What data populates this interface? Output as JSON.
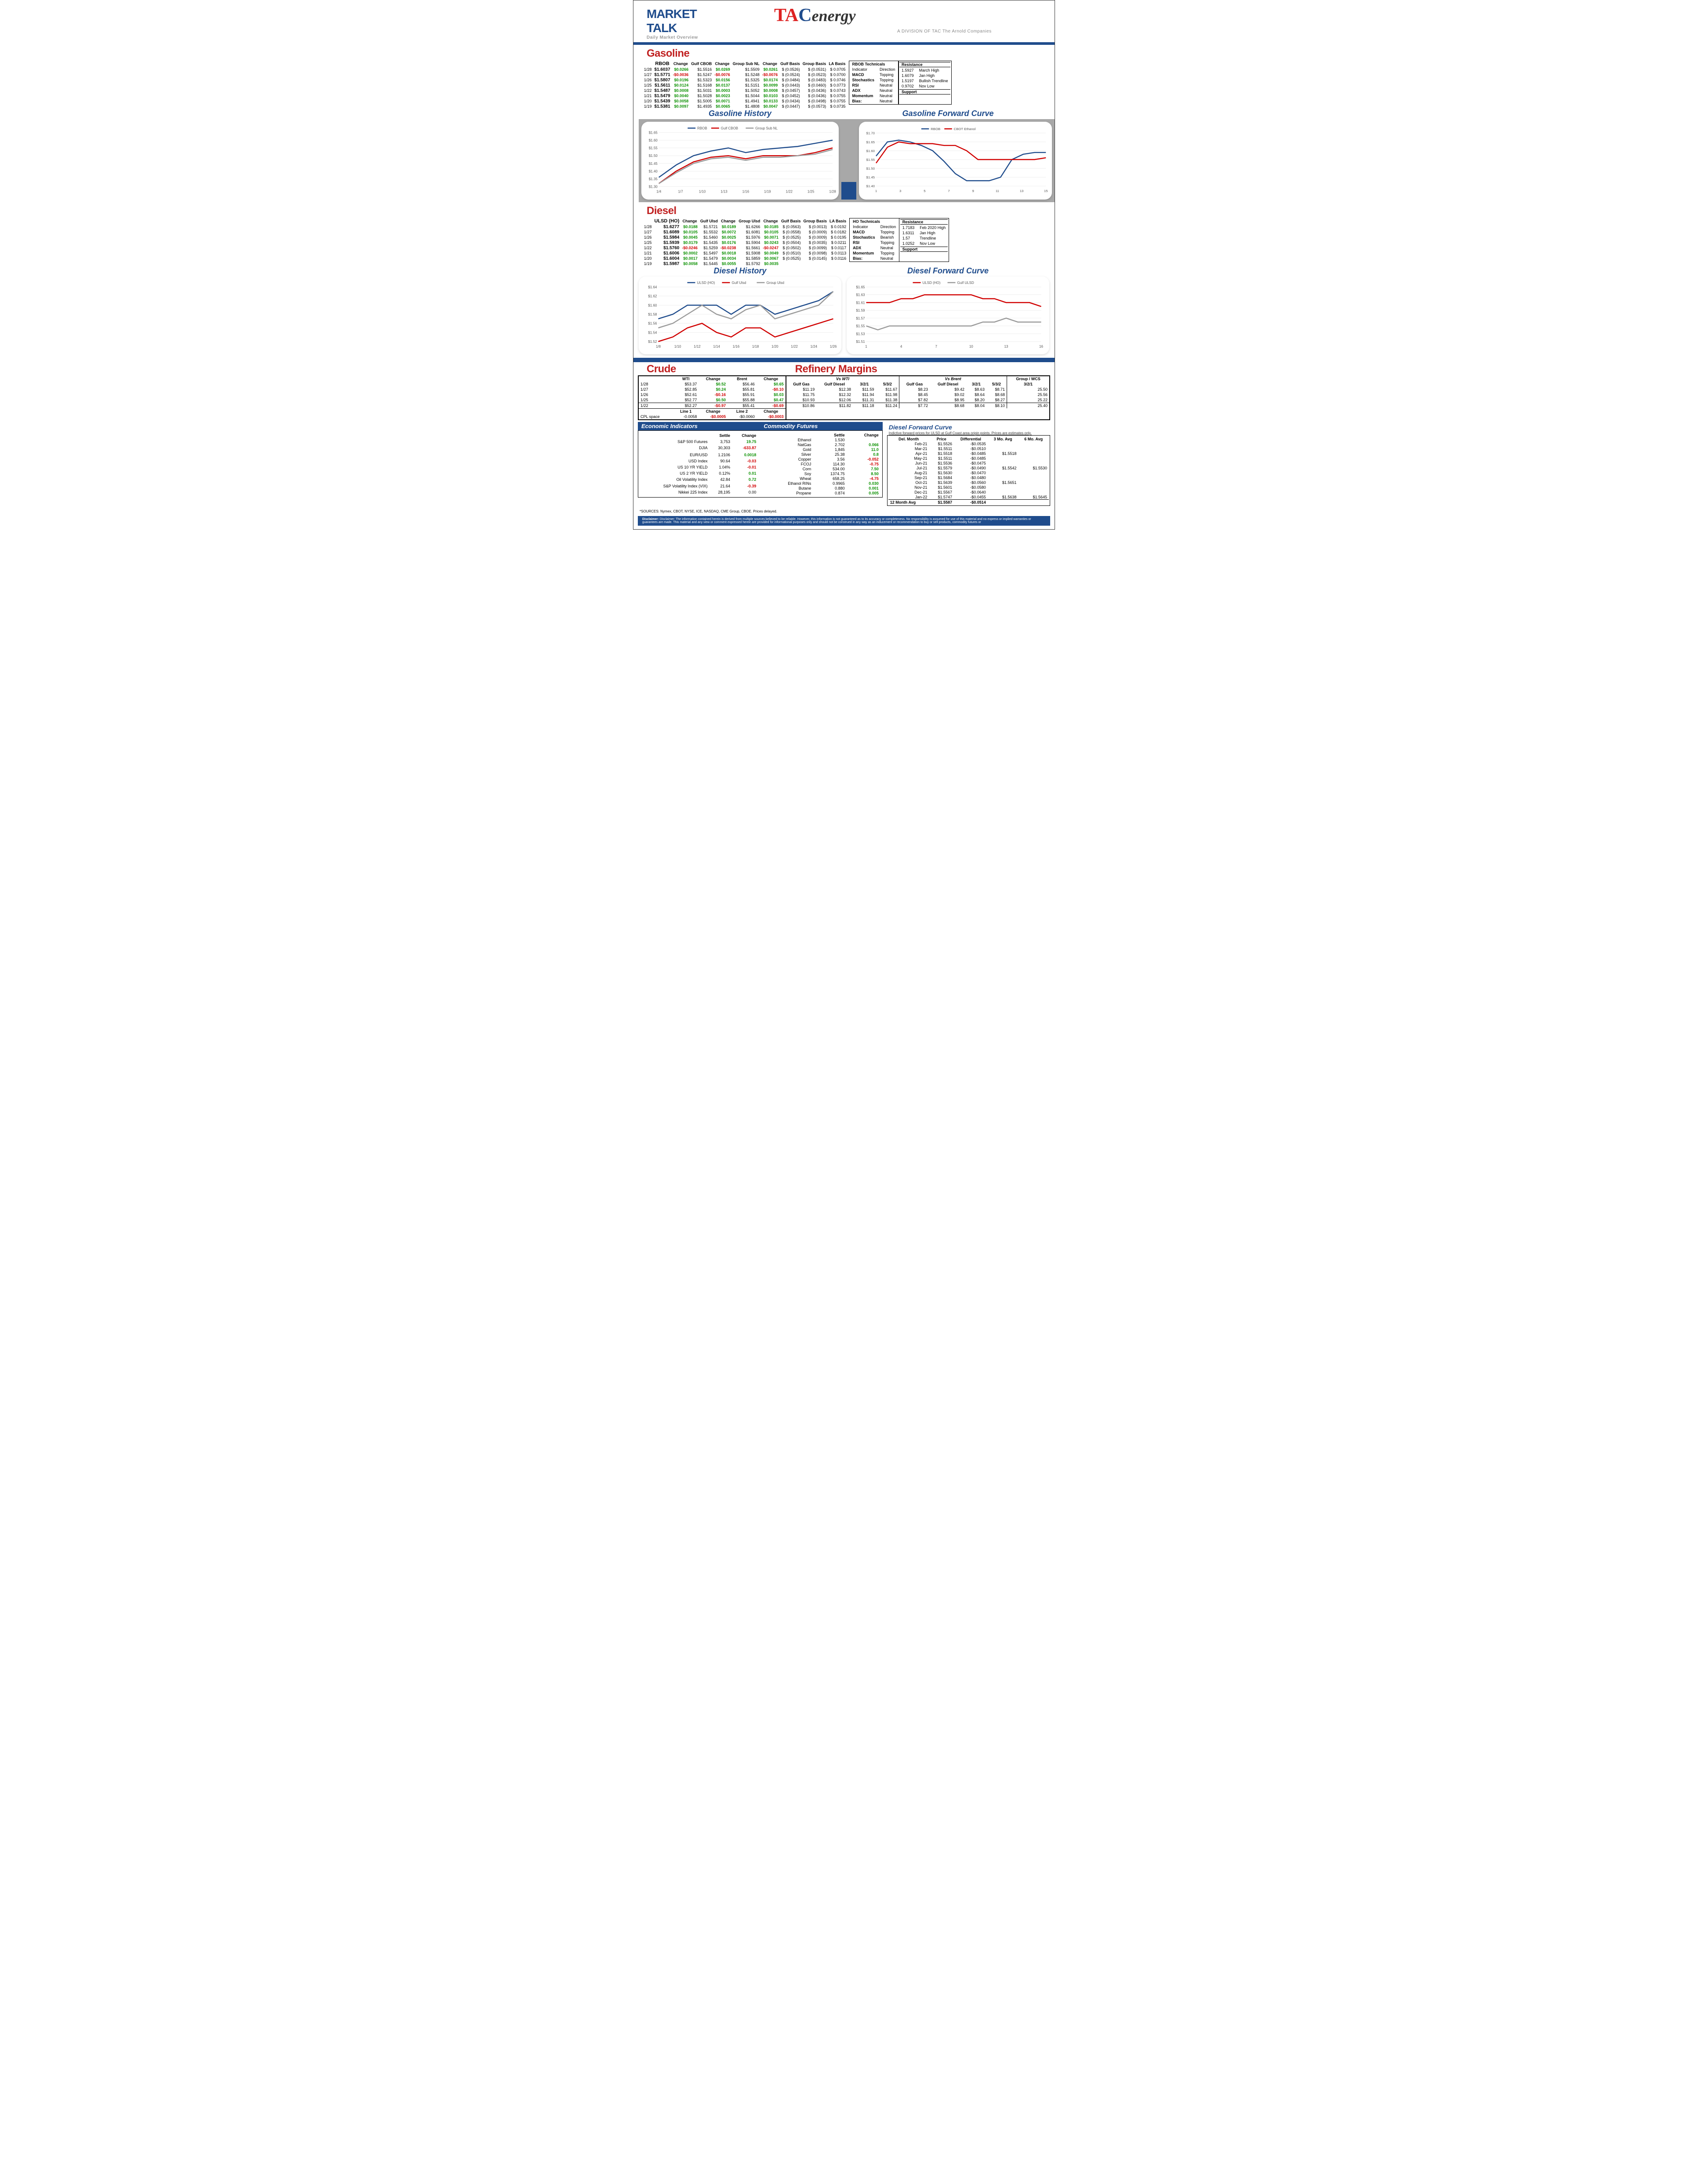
{
  "header": {
    "market": "MARKET",
    "talk": "TALK",
    "sub": "Daily Market Overview",
    "tac": "TACenergy",
    "tac_sub": "A DIVISION OF TAC The Arnold Companies"
  },
  "gasoline": {
    "title": "Gasoline",
    "cols": [
      "",
      "RBOB",
      "Change",
      "Gulf CBOB",
      "Change",
      "Group Sub NL",
      "Change",
      "Gulf Basis",
      "Group Basis",
      "LA Basis"
    ],
    "rows": [
      [
        "1/28",
        "$1.6037",
        "$0.0266",
        "$1.5516",
        "$0.0269",
        "$1.5509",
        "$0.0261",
        "$ (0.0526)",
        "$ (0.0531)",
        "$ 0.0705"
      ],
      [
        "1/27",
        "$1.5771",
        "-$0.0036",
        "$1.5247",
        "-$0.0076",
        "$1.5248",
        "-$0.0076",
        "$ (0.0524)",
        "$ (0.0523)",
        "$ 0.0700"
      ],
      [
        "1/26",
        "$1.5807",
        "$0.0196",
        "$1.5323",
        "$0.0156",
        "$1.5325",
        "$0.0174",
        "$ (0.0484)",
        "$ (0.0483)",
        "$ 0.0746"
      ],
      [
        "1/25",
        "$1.5611",
        "$0.0124",
        "$1.5168",
        "$0.0137",
        "$1.5151",
        "$0.0099",
        "$ (0.0443)",
        "$ (0.0460)",
        "$ 0.0773"
      ],
      [
        "1/22",
        "$1.5487",
        "$0.0008",
        "$1.5031",
        "$0.0003",
        "$1.5052",
        "$0.0008",
        "$ (0.0457)",
        "$ (0.0436)",
        "$ 0.0743"
      ],
      [
        "1/21",
        "$1.5479",
        "$0.0040",
        "$1.5028",
        "$0.0023",
        "$1.5044",
        "$0.0103",
        "$ (0.0452)",
        "$ (0.0436)",
        "$ 0.0755"
      ],
      [
        "1/20",
        "$1.5439",
        "$0.0058",
        "$1.5005",
        "$0.0071",
        "$1.4941",
        "$0.0133",
        "$ (0.0434)",
        "$ (0.0498)",
        "$ 0.0755"
      ],
      [
        "1/19",
        "$1.5381",
        "$0.0097",
        "$1.4935",
        "$0.0065",
        "$1.4808",
        "$0.0047",
        "$ (0.0447)",
        "$ (0.0573)",
        "$ 0.0735"
      ]
    ],
    "neg_rows": [
      1
    ],
    "technicals": {
      "header": "RBOB Technicals",
      "cols": [
        "Indicator",
        "Direction"
      ],
      "rows": [
        [
          "MACD",
          "Topping"
        ],
        [
          "Stochastics",
          "Topping"
        ],
        [
          "RSI",
          "Neutral"
        ],
        [
          "ADX",
          "Neutral"
        ],
        [
          "Momentum",
          "Neutral"
        ],
        [
          "Bias:",
          "Neutral"
        ]
      ]
    },
    "resistance": {
      "title": "Resistance",
      "rows": [
        [
          "1.5927",
          "March High"
        ],
        [
          "1.6079",
          "Jan High"
        ],
        [
          "1.5197",
          "Bullish Trendline"
        ],
        [
          "0.9702",
          "Nov Low"
        ]
      ],
      "support": "Support"
    }
  },
  "gas_history": {
    "title": "Gasoline History",
    "legend": [
      "RBOB",
      "Gulf CBOB",
      "Group Sub NL"
    ],
    "colors": [
      "#1f4c8c",
      "#d00000",
      "#9b9b9b"
    ],
    "x": [
      "1/4",
      "1/7",
      "1/10",
      "1/13",
      "1/16",
      "1/19",
      "1/22",
      "1/25",
      "1/28"
    ],
    "ylim": [
      1.3,
      1.65
    ],
    "ytick": 0.05,
    "series": [
      [
        1.36,
        1.44,
        1.5,
        1.53,
        1.55,
        1.52,
        1.54,
        1.55,
        1.56,
        1.58,
        1.6
      ],
      [
        1.32,
        1.4,
        1.46,
        1.49,
        1.5,
        1.48,
        1.5,
        1.5,
        1.5,
        1.52,
        1.55
      ],
      [
        1.32,
        1.39,
        1.45,
        1.48,
        1.49,
        1.47,
        1.49,
        1.49,
        1.5,
        1.51,
        1.54
      ]
    ]
  },
  "gas_fwd": {
    "title": "Gasoline Forward Curve",
    "legend": [
      "RBOB",
      "CBOT Ethanol"
    ],
    "colors": [
      "#1f4c8c",
      "#d00000"
    ],
    "x": [
      "1",
      "3",
      "5",
      "7",
      "9",
      "11",
      "13",
      "15"
    ],
    "ylim": [
      1.4,
      1.7
    ],
    "ytick": 0.05,
    "series": [
      [
        1.57,
        1.65,
        1.66,
        1.65,
        1.63,
        1.6,
        1.54,
        1.47,
        1.43,
        1.43,
        1.43,
        1.45,
        1.55,
        1.58,
        1.59,
        1.59
      ],
      [
        1.53,
        1.62,
        1.65,
        1.64,
        1.64,
        1.64,
        1.63,
        1.63,
        1.6,
        1.55,
        1.55,
        1.55,
        1.55,
        1.55,
        1.55,
        1.56
      ]
    ]
  },
  "diesel": {
    "title": "Diesel",
    "cols": [
      "",
      "ULSD (HO)",
      "Change",
      "Gulf Ulsd",
      "Change",
      "Group Ulsd",
      "Change",
      "Gulf Basis",
      "Group Basis",
      "LA Basis"
    ],
    "rows": [
      [
        "1/28",
        "$1.6277",
        "$0.0188",
        "$1.5721",
        "$0.0189",
        "$1.6266",
        "$0.0185",
        "$ (0.0563)",
        "$ (0.0013)",
        "$ 0.0192"
      ],
      [
        "1/27",
        "$1.6089",
        "$0.0105",
        "$1.5532",
        "$0.0072",
        "$1.6081",
        "$0.0105",
        "$ (0.0558)",
        "$ (0.0009)",
        "$ 0.0182"
      ],
      [
        "1/26",
        "$1.5984",
        "$0.0045",
        "$1.5460",
        "$0.0025",
        "$1.5976",
        "$0.0071",
        "$ (0.0525)",
        "$ (0.0009)",
        "$ 0.0195"
      ],
      [
        "1/25",
        "$1.5939",
        "$0.0179",
        "$1.5435",
        "$0.0176",
        "$1.5904",
        "$0.0243",
        "$ (0.0504)",
        "$ (0.0035)",
        "$ 0.0211"
      ],
      [
        "1/22",
        "$1.5760",
        "-$0.0246",
        "$1.5259",
        "-$0.0238",
        "$1.5661",
        "-$0.0247",
        "$ (0.0502)",
        "$ (0.0099)",
        "$ 0.0117"
      ],
      [
        "1/21",
        "$1.6006",
        "$0.0002",
        "$1.5497",
        "$0.0018",
        "$1.5908",
        "$0.0049",
        "$ (0.0510)",
        "$ (0.0098)",
        "$ 0.0113"
      ],
      [
        "1/20",
        "$1.6004",
        "$0.0017",
        "$1.5479",
        "$0.0034",
        "$1.5859",
        "$0.0067",
        "$ (0.0525)",
        "$ (0.0145)",
        "$ 0.0116"
      ],
      [
        "1/19",
        "$1.5987",
        "$0.0058",
        "$1.5445",
        "$0.0055",
        "$1.5792",
        "$0.0035",
        "",
        "",
        ""
      ]
    ],
    "neg_rows": [
      4
    ],
    "technicals": {
      "header": "HO Technicals",
      "cols": [
        "Indicator",
        "Direction"
      ],
      "rows": [
        [
          "MACD",
          "Topping"
        ],
        [
          "Stochastics",
          "Bearish"
        ],
        [
          "RSI",
          "Topping"
        ],
        [
          "ADX",
          "Neutral"
        ],
        [
          "Momentum",
          "Topping"
        ],
        [
          "Bias:",
          "Neutral"
        ]
      ]
    },
    "resistance": {
      "title": "Resistance",
      "rows": [
        [
          "1.7183",
          "Feb 2020 High"
        ],
        [
          "1.6311",
          "Jan High"
        ],
        [
          "1.57",
          "Trendline"
        ],
        [
          "1.0252",
          "Nov Low"
        ]
      ],
      "support": "Support"
    }
  },
  "diesel_history": {
    "title": "Diesel History",
    "legend": [
      "ULSD (HO)",
      "Gulf Ulsd",
      "Group Ulsd"
    ],
    "colors": [
      "#1f4c8c",
      "#d00000",
      "#9b9b9b"
    ],
    "x": [
      "1/8",
      "1/10",
      "1/12",
      "1/14",
      "1/16",
      "1/18",
      "1/20",
      "1/22",
      "1/24",
      "1/26"
    ],
    "ylim": [
      1.52,
      1.64
    ],
    "ytick": 0.02,
    "series": [
      [
        1.57,
        1.58,
        1.6,
        1.6,
        1.6,
        1.58,
        1.6,
        1.6,
        1.58,
        1.59,
        1.6,
        1.61,
        1.63
      ],
      [
        1.52,
        1.53,
        1.55,
        1.56,
        1.54,
        1.53,
        1.55,
        1.55,
        1.53,
        1.54,
        1.55,
        1.56,
        1.57
      ],
      [
        1.55,
        1.56,
        1.58,
        1.6,
        1.58,
        1.57,
        1.59,
        1.6,
        1.57,
        1.58,
        1.59,
        1.6,
        1.63
      ]
    ]
  },
  "diesel_fwd": {
    "title": "Diesel Forward Curve",
    "legend": [
      "ULSD (HO)",
      "Gulf ULSD"
    ],
    "colors": [
      "#d00000",
      "#9b9b9b"
    ],
    "x": [
      "1",
      "4",
      "7",
      "10",
      "13",
      "16"
    ],
    "ylim": [
      1.51,
      1.65
    ],
    "ytick": 0.02,
    "series": [
      [
        1.61,
        1.61,
        1.61,
        1.62,
        1.62,
        1.63,
        1.63,
        1.63,
        1.63,
        1.63,
        1.62,
        1.62,
        1.61,
        1.61,
        1.61,
        1.6
      ],
      [
        1.55,
        1.54,
        1.55,
        1.55,
        1.55,
        1.55,
        1.55,
        1.55,
        1.55,
        1.55,
        1.56,
        1.56,
        1.57,
        1.56,
        1.56,
        1.56
      ]
    ]
  },
  "crude": {
    "title": "Crude",
    "cols": [
      "",
      "WTI",
      "Change",
      "Brent",
      "Change"
    ],
    "rows": [
      [
        "1/28",
        "$53.37",
        "$0.52",
        "$56.46",
        "$0.65"
      ],
      [
        "1/27",
        "$52.85",
        "$0.24",
        "$55.81",
        "-$0.10"
      ],
      [
        "1/26",
        "$52.61",
        "-$0.16",
        "$55.91",
        "$0.03"
      ],
      [
        "1/25",
        "$52.77",
        "$0.50",
        "$55.88",
        "$0.47"
      ],
      [
        "1/22",
        "$52.27",
        "-$0.97",
        "$55.41",
        "-$0.69"
      ]
    ],
    "cpl": {
      "label": "CPL space",
      "l1": "Line 1",
      "c1": "Change",
      "l2": "Line 2",
      "c2": "Change",
      "v": [
        "-0.0058",
        "-$0.0005",
        "-$0.0060",
        "-$0.0003"
      ]
    }
  },
  "refinery": {
    "title": "Refinery Margins",
    "hdr1": [
      "Vs WTI",
      "Vs Brent",
      "Group / WCS"
    ],
    "cols": [
      "Gulf Gas",
      "Gulf Diesel",
      "3/2/1",
      "5/3/2",
      "Gulf Gas",
      "Gulf Diesel",
      "3/2/1",
      "5/3/2",
      "3/2/1"
    ],
    "rows": [
      [
        "$11.19",
        "$12.38",
        "$11.59",
        "$11.67",
        "$8.23",
        "$9.42",
        "$8.63",
        "$8.71",
        "25.50"
      ],
      [
        "$11.75",
        "$12.32",
        "$11.94",
        "$11.98",
        "$8.45",
        "$9.02",
        "$8.64",
        "$8.68",
        "25.56"
      ],
      [
        "$10.93",
        "$12.06",
        "$11.31",
        "$11.38",
        "$7.82",
        "$8.95",
        "$8.20",
        "$8.27",
        "25.22"
      ],
      [
        "$10.86",
        "$11.82",
        "$11.18",
        "$11.24",
        "$7.72",
        "$8.68",
        "$8.04",
        "$8.10",
        "25.40"
      ]
    ]
  },
  "econ": {
    "title": "Economic Indicators",
    "cols": [
      "",
      "Settle",
      "Change"
    ],
    "rows": [
      [
        "S&P 500 Futures",
        "3,753",
        "19.75",
        "pos"
      ],
      [
        "DJIA",
        "30,303",
        "-633.87",
        "neg"
      ],
      [
        "",
        "",
        "",
        ""
      ],
      [
        "EUR/USD",
        "1.2106",
        "0.0018",
        "pos"
      ],
      [
        "USD Index",
        "90.64",
        "-0.03",
        "neg"
      ],
      [
        "US 10 YR YIELD",
        "1.04%",
        "-0.01",
        "neg"
      ],
      [
        "US 2 YR YIELD",
        "0.12%",
        "0.01",
        "pos"
      ],
      [
        "Oil Volatility Index",
        "42.84",
        "0.72",
        "pos"
      ],
      [
        "S&P Volatility Index (VIX)",
        "21.64",
        "-0.39",
        "neg"
      ],
      [
        "Nikkei 225 Index",
        "28,195",
        "0.00",
        ""
      ]
    ]
  },
  "commod": {
    "title": "Commodity Futures",
    "cols": [
      "",
      "Settle",
      "Change"
    ],
    "rows": [
      [
        "Ethanol",
        "1.530",
        "",
        ""
      ],
      [
        "NatGas",
        "2.702",
        "0.066",
        "pos"
      ],
      [
        "Gold",
        "1,845",
        "11.0",
        "pos"
      ],
      [
        "Silver",
        "25.38",
        "0.8",
        "pos"
      ],
      [
        "Copper",
        "3.56",
        "-0.052",
        "neg"
      ],
      [
        "FCOJ",
        "114.30",
        "-0.75",
        "neg"
      ],
      [
        "Corn",
        "534.00",
        "7.50",
        "pos"
      ],
      [
        "Soy",
        "1374.75",
        "8.50",
        "pos"
      ],
      [
        "Wheat",
        "658.25",
        "-4.75",
        "neg"
      ],
      [
        "Ethanol RINs",
        "0.9965",
        "0.030",
        "pos"
      ],
      [
        "Butane",
        "0.880",
        "0.001",
        "pos"
      ],
      [
        "Propane",
        "0.874",
        "0.005",
        "pos"
      ]
    ]
  },
  "dfc": {
    "title": "Diesel Forward Curve",
    "sub": "Indictive forward prices for ULSD at Gulf Coast area origin points.  Prices are estimates only.",
    "cols": [
      "Del. Month",
      "Price",
      "Differential",
      "3 Mo. Avg",
      "6 Mo. Avg"
    ],
    "rows": [
      [
        "Feb-21",
        "$1.5526",
        "-$0.0535",
        "",
        ""
      ],
      [
        "Mar-21",
        "$1.5511",
        "-$0.0510",
        "",
        ""
      ],
      [
        "Apr-21",
        "$1.5518",
        "-$0.0485",
        "$1.5518",
        ""
      ],
      [
        "May-21",
        "$1.5511",
        "-$0.0485",
        "",
        ""
      ],
      [
        "Jun-21",
        "$1.5536",
        "-$0.0475",
        "",
        ""
      ],
      [
        "Jul-21",
        "$1.5579",
        "-$0.0490",
        "$1.5542",
        "$1.5530"
      ],
      [
        "Aug-21",
        "$1.5630",
        "-$0.0470",
        "",
        ""
      ],
      [
        "Sep-21",
        "$1.5684",
        "-$0.0480",
        "",
        ""
      ],
      [
        "Oct-21",
        "$1.5639",
        "-$0.0560",
        "$1.5651",
        ""
      ],
      [
        "Nov-21",
        "$1.5601",
        "-$0.0580",
        "",
        ""
      ],
      [
        "Dec-21",
        "$1.5567",
        "-$0.0640",
        "",
        ""
      ],
      [
        "Jan-22",
        "$1.5747",
        "-$0.0455",
        "$1.5638",
        "$1.5645"
      ]
    ],
    "avg": [
      "12 Month Avg",
      "$1.5587",
      "-$0.0514",
      "",
      ""
    ]
  },
  "sources": "*SOURCES: Nymex, CBOT, NYSE, ICE, NASDAQ, CME Group, CBOE.  Prices delayed.",
  "disclaimer": "Disclaimer: The information contained herein is derived from multiple sources believed to be reliable.  However, this information is not guaranteed as to its accuracy or completeness. No responsibility is assumed for use of this material and no express or implied warranties or guarantees are made. This material and any view or comment expressed herein are provided for informational purposes only and should not be construed in any way as an inducement or recommendation to buy or sell products, commodity futures or"
}
